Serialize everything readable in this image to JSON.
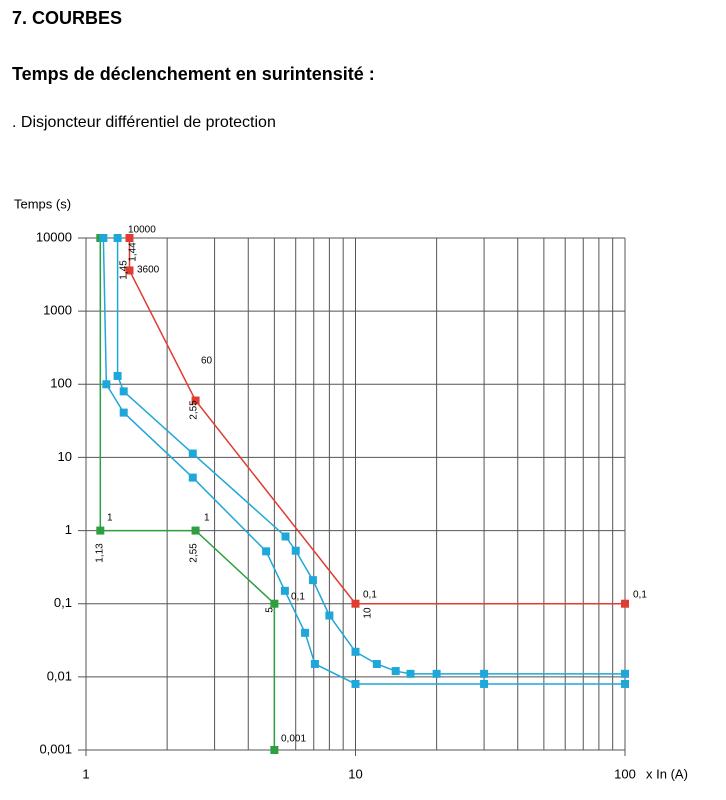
{
  "header": {
    "title": "7. COURBES",
    "subtitle": "Temps de déclenchement en surintensité :",
    "caption": ". Disjoncteur différentiel de protection"
  },
  "chart_data": {
    "type": "line",
    "y_label": "Temps (s)",
    "x_label": "x In (A)",
    "log_x": true,
    "log_y": true,
    "grid": true,
    "xlim": [
      1,
      100
    ],
    "xticks": [
      1,
      10,
      100
    ],
    "ylim": [
      0.001,
      10000
    ],
    "yticks": [
      {
        "value": 0.001,
        "label": "0,001"
      },
      {
        "value": 0.01,
        "label": "0,01"
      },
      {
        "value": 0.1,
        "label": "0,1"
      },
      1,
      10,
      100,
      1000,
      10000
    ],
    "series": [
      {
        "color": "#2e9e3e",
        "x": [
          1.13,
          1.13,
          2.55,
          5,
          5
        ],
        "values": [
          10000,
          1,
          1,
          0.1,
          0.001
        ]
      },
      {
        "color": "#e03c31",
        "x": [
          1.45,
          1.45,
          2.55,
          10,
          100
        ],
        "values": [
          10000,
          3600,
          60,
          0.1,
          0.1
        ]
      },
      {
        "color": "#1fa7d9",
        "x": [
          1.16,
          1.19,
          1.38,
          2.49,
          4.66,
          5.47,
          6.5,
          7.07,
          10,
          30,
          100
        ],
        "values": [
          10000,
          100,
          41,
          5.3,
          0.52,
          0.15,
          0.04,
          0.015,
          0.008,
          0.008,
          0.008
        ]
      },
      {
        "color": "#1fa7d9",
        "x": [
          1.31,
          1.31,
          1.38,
          2.49,
          5.5,
          6,
          6.95,
          8,
          10,
          12,
          14.1,
          16,
          20,
          30,
          100
        ],
        "values": [
          10000,
          130,
          80,
          11.3,
          0.83,
          0.53,
          0.21,
          0.069,
          0.022,
          0.015,
          0.012,
          0.011,
          0.011,
          0.011,
          0.011
        ]
      }
    ],
    "annotations": [
      "10000",
      "1,45",
      "1,44",
      "3600",
      "60",
      "2,55",
      "1",
      "1,13",
      "1",
      "2,55",
      "0,1",
      "5",
      "0,1",
      "10",
      "0,1",
      "0,001"
    ]
  }
}
